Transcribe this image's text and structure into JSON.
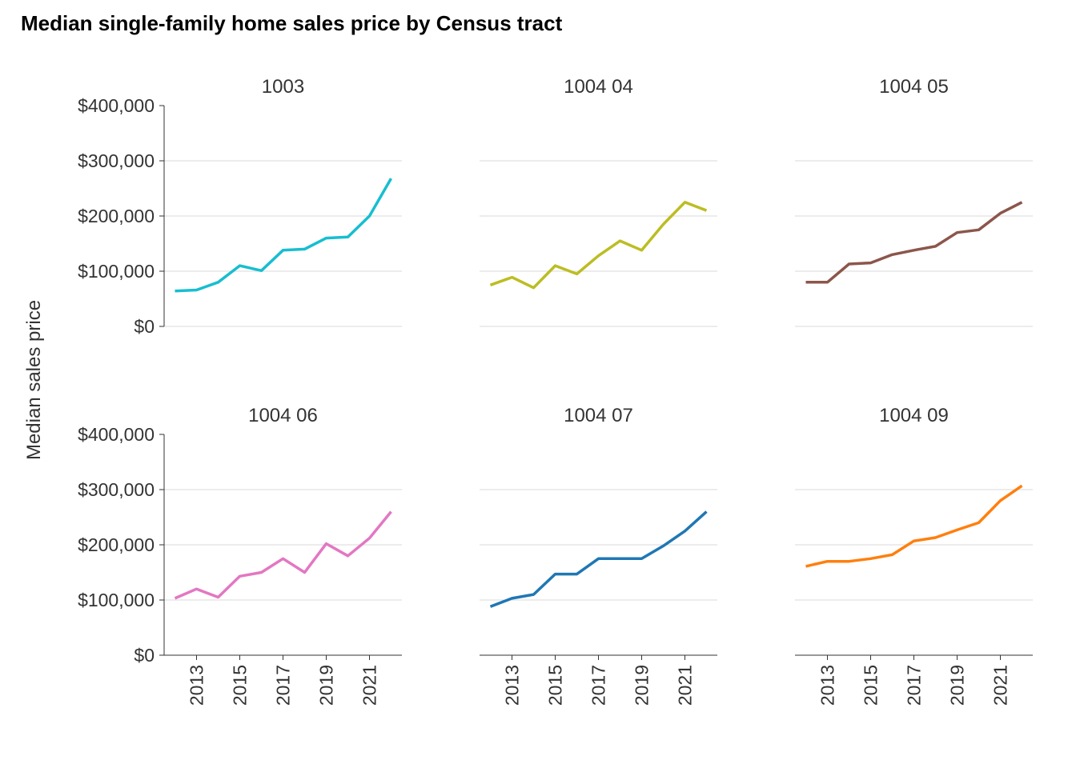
{
  "chart_data": {
    "type": "line",
    "title": "Median single-family home sales price by Census tract",
    "ylabel": "Median sales price",
    "xlabel": "",
    "ylim": [
      0,
      400000
    ],
    "xlim": [
      2011.5,
      2022.5
    ],
    "y_ticks": [
      0,
      100000,
      200000,
      300000,
      400000
    ],
    "y_tick_labels": [
      "$0",
      "$100,000",
      "$200,000",
      "$300,000",
      "$400,000"
    ],
    "x_ticks": [
      2013,
      2015,
      2017,
      2019,
      2021
    ],
    "x_tick_labels": [
      "2013",
      "2015",
      "2017",
      "2019",
      "2021"
    ],
    "grid": true,
    "legend": "none",
    "x": [
      2012,
      2013,
      2014,
      2015,
      2016,
      2017,
      2018,
      2019,
      2020,
      2021,
      2022
    ],
    "panels": [
      {
        "name": "1003",
        "color": "#17becf",
        "values": [
          64000,
          66000,
          80000,
          110000,
          101000,
          138000,
          140000,
          160000,
          162000,
          200000,
          268000
        ]
      },
      {
        "name": "1004 04",
        "color": "#bcbd22",
        "values": [
          75000,
          89000,
          70000,
          110000,
          95000,
          128000,
          155000,
          138000,
          185000,
          225000,
          210000
        ]
      },
      {
        "name": "1004 05",
        "color": "#8c564b",
        "values": [
          80000,
          80000,
          113000,
          115000,
          130000,
          138000,
          145000,
          170000,
          175000,
          205000,
          225000
        ]
      },
      {
        "name": "1004 06",
        "color": "#e377c2",
        "values": [
          103000,
          120000,
          105000,
          143000,
          150000,
          175000,
          150000,
          202000,
          180000,
          212000,
          260000
        ]
      },
      {
        "name": "1004 07",
        "color": "#1f77b4",
        "values": [
          88000,
          103000,
          110000,
          147000,
          147000,
          175000,
          175000,
          175000,
          198000,
          225000,
          260000
        ]
      },
      {
        "name": "1004 09",
        "color": "#ff7f0e",
        "values": [
          161000,
          170000,
          170000,
          175000,
          182000,
          207000,
          213000,
          227000,
          240000,
          280000,
          307000
        ]
      }
    ]
  }
}
